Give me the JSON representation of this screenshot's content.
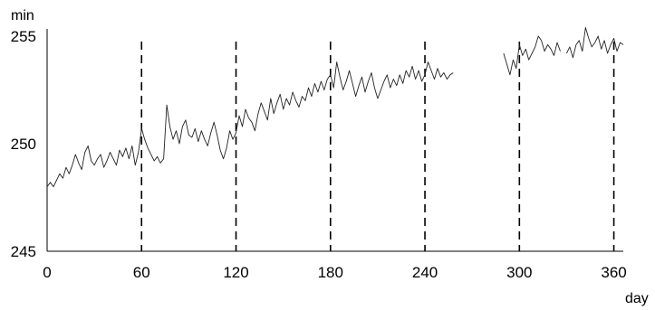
{
  "chart_data": {
    "type": "line",
    "title": "",
    "xlabel": "day",
    "ylabel": "min",
    "xlim": [
      0,
      366
    ],
    "ylim": [
      245,
      255
    ],
    "xticks": [
      "0",
      "60",
      "120",
      "180",
      "240",
      "300",
      "360"
    ],
    "yticks": [
      "245",
      "250",
      "255"
    ],
    "vlines_at_days": [
      60,
      120,
      180,
      240,
      300,
      360
    ],
    "colors": {
      "line": "#222222",
      "axis": "#000000",
      "vlines": "#000000"
    },
    "grid": false,
    "legend": "none",
    "series": [
      {
        "segments": [
          {
            "x": [
              0,
              2,
              4,
              6,
              8,
              10,
              12,
              14,
              16,
              18,
              20,
              22,
              24,
              26,
              28,
              30,
              32,
              34,
              36,
              38,
              40,
              42,
              44,
              46,
              48,
              50,
              52,
              54,
              56,
              58,
              60,
              62,
              64,
              66,
              68,
              70,
              72,
              74,
              76,
              78,
              80,
              82,
              84,
              86,
              88,
              90,
              92,
              94,
              96,
              98,
              100,
              102,
              104,
              106,
              108,
              110,
              112,
              114,
              116,
              118,
              120,
              122,
              124,
              126,
              128,
              130,
              132,
              134,
              136,
              138,
              140,
              142,
              144,
              146,
              148,
              150,
              152,
              154,
              156,
              158,
              160,
              162,
              164,
              166,
              168,
              170,
              172,
              174,
              176,
              178,
              180,
              182,
              184,
              186,
              188,
              190,
              192,
              194,
              196,
              198,
              200,
              202,
              204,
              206,
              208,
              210,
              212,
              214,
              216,
              218,
              220,
              222,
              224,
              226,
              228,
              230,
              232,
              234,
              236,
              238,
              240,
              242,
              244,
              246,
              248,
              250,
              252,
              254,
              256,
              258
            ],
            "y": [
              248.0,
              248.2,
              248.0,
              248.3,
              248.6,
              248.4,
              248.9,
              248.6,
              249.0,
              249.5,
              249.1,
              248.8,
              249.6,
              249.9,
              249.2,
              249.0,
              249.3,
              249.5,
              248.9,
              249.2,
              249.6,
              249.3,
              249.0,
              249.7,
              249.4,
              249.8,
              249.3,
              249.9,
              249.0,
              249.6,
              250.7,
              250.2,
              249.8,
              249.5,
              249.2,
              249.4,
              249.1,
              249.3,
              251.8,
              250.8,
              250.2,
              250.6,
              250.0,
              250.8,
              251.1,
              250.4,
              250.3,
              250.7,
              250.1,
              250.6,
              250.2,
              249.9,
              250.5,
              251.0,
              250.4,
              249.7,
              249.3,
              249.8,
              250.6,
              250.2,
              250.5,
              251.3,
              250.8,
              251.6,
              251.2,
              251.0,
              250.6,
              251.4,
              251.9,
              251.5,
              251.1,
              252.1,
              251.4,
              251.9,
              252.3,
              251.6,
              252.1,
              251.8,
              252.4,
              252.0,
              251.7,
              252.2,
              252.0,
              252.6,
              252.2,
              252.8,
              252.4,
              252.9,
              252.5,
              253.0,
              253.2,
              252.6,
              253.8,
              253.1,
              252.5,
              252.9,
              253.4,
              252.8,
              252.2,
              252.7,
              253.1,
              252.4,
              252.9,
              253.3,
              252.6,
              252.1,
              252.5,
              252.9,
              253.2,
              252.6,
              253.0,
              252.7,
              253.2,
              252.8,
              253.4,
              253.1,
              253.6,
              253.0,
              253.4,
              252.9,
              253.2,
              253.8,
              253.4,
              253.0,
              253.5,
              253.1,
              253.3,
              253.0,
              253.2,
              253.3
            ]
          },
          {
            "x": [
              290,
              292,
              294,
              296,
              298,
              300,
              302,
              304,
              306,
              308,
              310,
              312,
              314,
              316,
              318,
              320,
              322,
              324,
              326
            ],
            "y": [
              254.2,
              253.7,
              253.2,
              253.9,
              253.5,
              254.6,
              254.1,
              254.4,
              253.9,
              254.2,
              254.5,
              255.0,
              254.8,
              254.3,
              254.6,
              254.4,
              254.1,
              254.7,
              254.3
            ]
          },
          {
            "x": [
              330,
              332,
              334,
              336,
              338,
              340,
              342,
              344,
              346,
              348,
              350,
              352,
              354,
              356,
              358,
              360,
              362,
              364,
              366
            ],
            "y": [
              254.2,
              254.5,
              254.0,
              254.6,
              254.8,
              254.3,
              255.4,
              254.9,
              254.5,
              254.7,
              255.0,
              254.4,
              254.8,
              254.2,
              254.6,
              254.9,
              254.3,
              254.7,
              254.6
            ]
          }
        ]
      }
    ]
  }
}
